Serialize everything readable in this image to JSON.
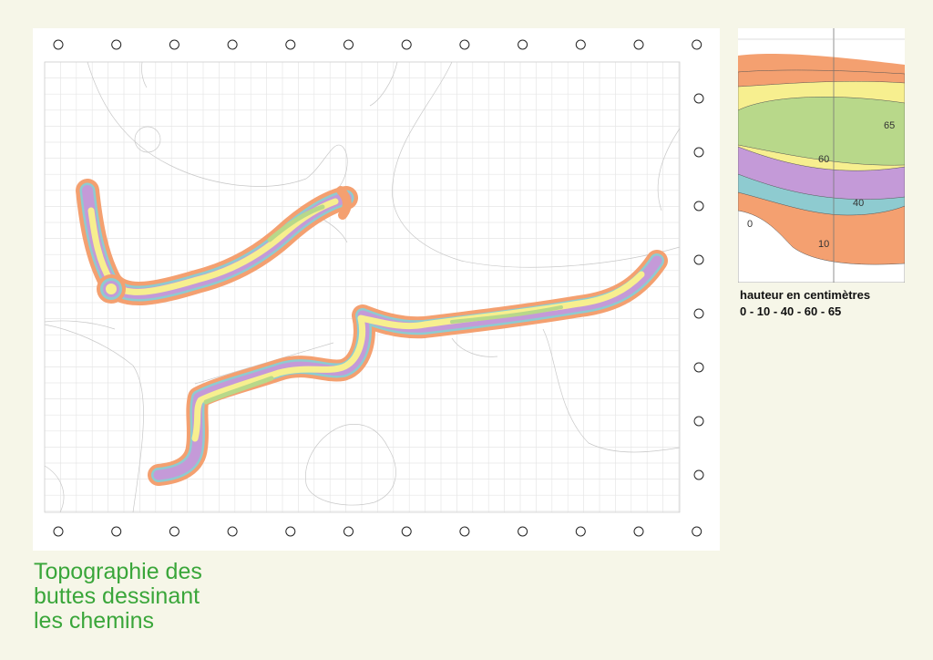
{
  "title_lines": [
    "Topographie des",
    "buttes dessinant",
    "les chemins"
  ],
  "legend": {
    "heading": "hauteur en centimètres",
    "levels_text": "0 - 10 - 40 - 60 - 65"
  },
  "inset_labels": {
    "l65": "65",
    "l60": "60",
    "l40": "40",
    "l0": "0",
    "l10": "10"
  },
  "colors": {
    "background": "#f6f6e8",
    "caption_green": "#3aa63a",
    "band_0_10": "#f4a070",
    "band_10_40": "#8ecbd0",
    "band_40_60": "#c49ad8",
    "band_60_65": "#f7ef8f",
    "band_65": "#b8d88a",
    "grid": "#e4e4e4"
  },
  "contour_levels_cm": [
    0,
    10,
    40,
    60,
    65
  ]
}
